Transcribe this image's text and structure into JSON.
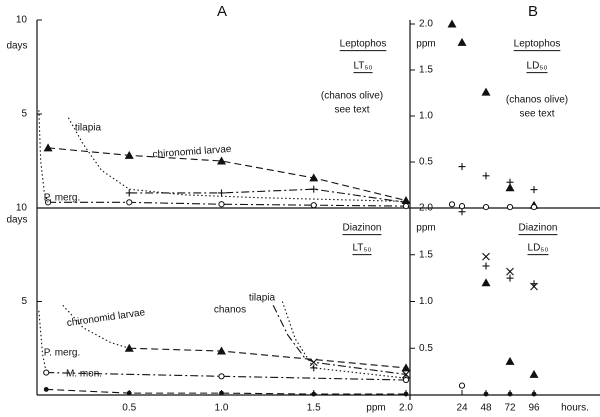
{
  "panel_labels": [
    "A",
    "B"
  ],
  "chart_data": [
    {
      "type": "line",
      "title": "Leptophos",
      "subtitle": "LT₅₀",
      "annotations": [
        "(chanos olive)",
        "see text"
      ],
      "ylabel": "days",
      "color": "#111",
      "xlim": [
        0,
        2
      ],
      "ylim": [
        0,
        10
      ],
      "yticks": [
        5,
        10
      ],
      "series": [
        {
          "name": "chironomid larvae",
          "marker": "triangle",
          "dash": "dashed",
          "x": [
            0.06,
            0.5,
            1.0,
            1.5,
            2.0
          ],
          "values": [
            3.2,
            2.8,
            2.5,
            1.6,
            0.4
          ]
        },
        {
          "name": "tilapia",
          "dash": "dotted",
          "x": [
            0.17,
            0.25,
            0.35,
            0.5,
            0.8,
            1.2,
            1.6,
            2.0
          ],
          "values": [
            4.8,
            3.4,
            2.0,
            1.0,
            0.7,
            0.55,
            0.45,
            0.35
          ]
        },
        {
          "marker": "plus",
          "dash": "dashdot",
          "x": [
            0.5,
            1.0,
            1.5,
            2.0
          ],
          "values": [
            0.8,
            0.8,
            1.0,
            0.3
          ]
        },
        {
          "name": "P. merg.",
          "marker": "circle",
          "dash": "dashdot",
          "x": [
            0.06,
            0.5,
            1.0,
            1.5,
            2.0
          ],
          "values": [
            0.3,
            0.3,
            0.2,
            0.15,
            0.1
          ]
        },
        {
          "dash": "dotted",
          "x": [
            0.01,
            0.02,
            0.04,
            0.06
          ],
          "values": [
            5.2,
            2.5,
            0.8,
            0.3
          ]
        }
      ]
    },
    {
      "type": "line",
      "title": "Diazinon",
      "subtitle": "LT₅₀",
      "ylabel": "days",
      "xlabel": "ppm",
      "color": "#111",
      "xlim": [
        0,
        2
      ],
      "ylim": [
        0,
        10
      ],
      "yticks": [
        5,
        10
      ],
      "xticks": [
        0.5,
        {
          "value": 1,
          "label": "1.0"
        },
        1.5,
        {
          "value": 2,
          "label": "2.0"
        }
      ],
      "series": [
        {
          "name": "chironomid larvae",
          "dash": "dotted",
          "x": [
            0.14,
            0.25,
            0.4,
            0.5
          ],
          "values": [
            4.8,
            3.6,
            2.8,
            2.5
          ]
        },
        {
          "marker": "triangle",
          "dash": "dashed",
          "x": [
            0.5,
            1.0,
            2.0
          ],
          "values": [
            2.5,
            2.35,
            1.45
          ]
        },
        {
          "name": "chanos",
          "dash": "dashdot",
          "x": [
            1.28,
            1.36,
            1.45,
            1.5,
            2.0
          ],
          "values": [
            4.8,
            3.2,
            2.0,
            1.75,
            1.1
          ]
        },
        {
          "marker": "x",
          "x": [
            1.5,
            2.0
          ],
          "values": [
            1.75,
            1.1
          ]
        },
        {
          "name": "tilapia",
          "dash": "dotted",
          "x": [
            1.33,
            1.4,
            1.5,
            2.0
          ],
          "values": [
            5.0,
            3.0,
            1.45,
            0.9
          ]
        },
        {
          "marker": "plus",
          "x": [
            1.5,
            2.0
          ],
          "values": [
            1.45,
            0.9
          ]
        },
        {
          "name": "P. merg.",
          "dash": "dotted",
          "x": [
            0.01,
            0.03,
            0.05
          ],
          "values": [
            4.5,
            2.2,
            1.2
          ]
        },
        {
          "marker": "circle",
          "dash": "dashdot",
          "x": [
            0.05,
            1.0,
            2.0
          ],
          "values": [
            1.2,
            1.0,
            0.8
          ]
        },
        {
          "name": "M. mon.",
          "marker": "dot",
          "dash": "dashed",
          "x": [
            0.05,
            0.5,
            1.0,
            1.5,
            2.0
          ],
          "values": [
            0.3,
            0.1,
            0.1,
            0.05,
            0.05
          ]
        }
      ]
    },
    {
      "type": "scatter",
      "title": "Leptophos",
      "subtitle": "LD₅₀",
      "annotations": [
        "(chanos olive)",
        "see text"
      ],
      "ylabel": "ppm",
      "color": "#111",
      "xlim": [
        -28,
        162
      ],
      "ylim": [
        0,
        2
      ],
      "yticks": [
        0.5,
        {
          "value": 1,
          "label": "1.0"
        },
        1.5,
        {
          "value": 2,
          "label": "2.0"
        }
      ],
      "series": [
        {
          "marker": "triangle",
          "x": [
            14,
            24,
            48,
            72,
            96
          ],
          "values": [
            2.0,
            1.8,
            1.26,
            0.22,
            0.03
          ]
        },
        {
          "marker": "plus",
          "x": [
            24,
            48,
            72,
            96
          ],
          "values": [
            0.45,
            0.35,
            0.28,
            0.2
          ]
        },
        {
          "marker": "circle",
          "x": [
            14,
            24,
            48,
            72,
            96
          ],
          "values": [
            0.04,
            0.02,
            0.01,
            0.01,
            0.01
          ]
        }
      ]
    },
    {
      "type": "scatter",
      "title": "Diazinon",
      "subtitle": "LD₅₀",
      "ylabel": "ppm",
      "xlabel": "hours.",
      "color": "#111",
      "xlim": [
        -28,
        162
      ],
      "ylim": [
        0,
        2
      ],
      "yticks": [
        0.5,
        {
          "value": 1,
          "label": "1.0"
        },
        1.5,
        {
          "value": 2,
          "label": "2.0"
        }
      ],
      "xticks": [
        24,
        48,
        72,
        96
      ],
      "series": [
        {
          "marker": "plus",
          "x": [
            24,
            48,
            72,
            96
          ],
          "values": [
            1.96,
            1.38,
            1.25,
            1.19
          ]
        },
        {
          "marker": "x",
          "x": [
            48,
            72,
            96
          ],
          "values": [
            1.48,
            1.32,
            1.16
          ]
        },
        {
          "marker": "triangle",
          "x": [
            48,
            72,
            96
          ],
          "values": [
            1.2,
            0.36,
            0.22
          ]
        },
        {
          "marker": "circle",
          "x": [
            24
          ],
          "values": [
            0.1
          ]
        },
        {
          "marker": "dot",
          "x": [
            48,
            72,
            96
          ],
          "values": [
            0.01,
            0.01,
            0.01
          ]
        }
      ]
    }
  ]
}
